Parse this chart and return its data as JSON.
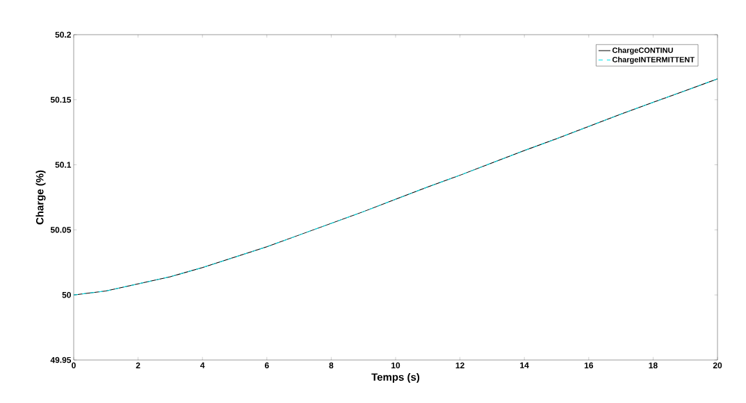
{
  "chart_data": {
    "type": "line",
    "xlabel": "Temps (s)",
    "ylabel": "Charge (%)",
    "x": [
      0,
      1,
      2,
      3,
      4,
      5,
      6,
      7,
      8,
      9,
      10,
      11,
      12,
      13,
      14,
      15,
      16,
      17,
      18,
      19,
      20
    ],
    "series": [
      {
        "name": "ChargeCONTINU",
        "color": "#000000",
        "values": [
          50.0,
          50.003,
          50.0085,
          50.014,
          50.021,
          50.029,
          50.037,
          50.046,
          50.055,
          50.064,
          50.0735,
          50.083,
          50.092,
          50.1015,
          50.111,
          50.12,
          50.1295,
          50.139,
          50.148,
          50.157,
          50.166
        ]
      },
      {
        "name": "ChargeINTERMITTENT",
        "color": "#00e5ee",
        "line_style": "dashed",
        "values": [
          50.0,
          50.003,
          50.0085,
          50.014,
          50.021,
          50.029,
          50.037,
          50.046,
          50.055,
          50.064,
          50.0735,
          50.083,
          50.092,
          50.1015,
          50.111,
          50.12,
          50.1295,
          50.139,
          50.148,
          50.157,
          50.166
        ]
      }
    ],
    "xlim": [
      0,
      20
    ],
    "xticks": [
      0,
      2,
      4,
      6,
      8,
      10,
      12,
      14,
      16,
      18,
      20
    ],
    "ylim": [
      49.95,
      50.2
    ],
    "yticks": [
      {
        "value": 49.95,
        "label": "49.95"
      },
      {
        "value": 50,
        "label": "50"
      },
      {
        "value": 50.05,
        "label": "50.05"
      },
      {
        "value": 50.1,
        "label": "50.1"
      },
      {
        "value": 50.15,
        "label": "50.15"
      },
      {
        "value": 50.2,
        "label": "50.2"
      }
    ],
    "grid": false,
    "legend": "top right",
    "marker": "none",
    "line_style": "solid"
  }
}
